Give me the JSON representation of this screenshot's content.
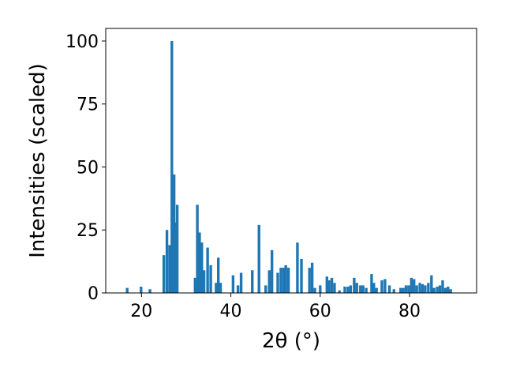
{
  "chart_data": {
    "type": "bar",
    "xlabel": "2θ (°)",
    "ylabel": "Intensities (scaled)",
    "xlim": [
      12,
      95
    ],
    "ylim": [
      0,
      105
    ],
    "xticks": [
      "20",
      "40",
      "60",
      "80"
    ],
    "yticks": [
      "0",
      "25",
      "50",
      "75",
      "100"
    ],
    "grid": false,
    "bar_color": "#1f77b4",
    "bar_width_deg": 0.6,
    "x": [
      16.8,
      19.9,
      21.9,
      25.0,
      25.7,
      26.3,
      26.8,
      27.3,
      27.6,
      28.0,
      32.0,
      32.5,
      33.0,
      33.5,
      34.0,
      34.8,
      35.5,
      36.7,
      37.2,
      37.7,
      40.5,
      41.6,
      42.3,
      44.8,
      46.3,
      47.8,
      48.6,
      49.2,
      50.5,
      51.2,
      51.8,
      52.3,
      52.9,
      54.9,
      55.8,
      57.6,
      58.2,
      58.8,
      60.0,
      61.5,
      62.0,
      62.6,
      63.2,
      64.3,
      65.5,
      66.2,
      66.8,
      67.6,
      68.2,
      69.0,
      69.6,
      70.3,
      71.5,
      72.0,
      72.6,
      73.8,
      74.5,
      75.5,
      76.5,
      78.0,
      78.6,
      79.2,
      79.8,
      80.4,
      81.0,
      81.6,
      82.3,
      82.9,
      83.5,
      84.2,
      84.9,
      85.5,
      86.2,
      86.8,
      87.4,
      88.0,
      88.6,
      89.2
    ],
    "values": [
      2,
      2.5,
      1.5,
      15,
      25,
      19,
      100,
      47,
      28,
      35,
      6,
      35,
      24,
      20,
      9,
      18,
      11,
      4,
      14,
      4,
      7,
      3,
      8,
      9,
      27,
      3,
      9,
      17,
      8,
      10,
      10,
      11,
      10,
      20,
      13.5,
      10,
      12,
      2,
      3,
      6.5,
      5,
      6,
      4,
      1,
      2.5,
      2.5,
      3,
      6,
      4,
      3,
      3,
      2,
      7.5,
      4,
      2,
      5,
      5.5,
      3,
      1.5,
      2,
      2,
      3,
      3,
      6,
      5.5,
      3,
      4,
      3.5,
      3,
      4,
      7,
      2,
      2.5,
      3,
      5,
      2,
      2.5,
      1.5
    ]
  }
}
